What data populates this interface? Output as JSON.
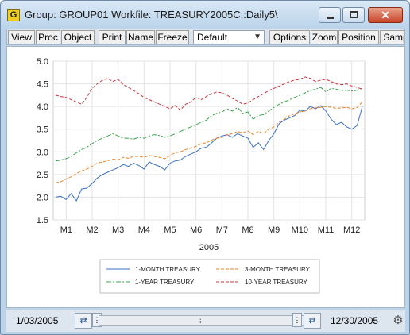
{
  "window": {
    "app_icon_letter": "G",
    "title": "Group: GROUP01   Workfile: TREASURY2005C::Daily5\\",
    "close_glyph": "✕"
  },
  "toolbar": {
    "buttons": [
      "View",
      "Proc",
      "Object",
      "Print",
      "Name",
      "Freeze",
      "Options",
      "Zoom",
      "Position",
      "Samp"
    ],
    "select_value": "Default"
  },
  "status": {
    "start_date": "1/03/2005",
    "end_date": "12/30/2005",
    "slider_grip": "⁞"
  },
  "chart_data": {
    "type": "line",
    "xlabel": "2005",
    "ylabel": "",
    "ylim": [
      1.5,
      5.0
    ],
    "yticks": [
      "1.5",
      "2.0",
      "2.5",
      "3.0",
      "3.5",
      "4.0",
      "4.5",
      "5.0"
    ],
    "x_tick_labels": [
      "M1",
      "M2",
      "M3",
      "M4",
      "M5",
      "M6",
      "M7",
      "M8",
      "M9",
      "M10",
      "M11",
      "M12"
    ],
    "grid": true,
    "legend_position": "bottom-center",
    "series": [
      {
        "name": "1-MONTH TREASURY",
        "color": "#3a6fc4",
        "dash": "solid",
        "values": [
          2.0,
          2.02,
          1.95,
          2.08,
          1.92,
          2.18,
          2.2,
          2.3,
          2.42,
          2.5,
          2.55,
          2.6,
          2.65,
          2.72,
          2.68,
          2.75,
          2.7,
          2.62,
          2.78,
          2.72,
          2.68,
          2.6,
          2.75,
          2.8,
          2.82,
          2.9,
          2.95,
          3.0,
          3.08,
          3.1,
          3.2,
          3.3,
          3.35,
          3.38,
          3.32,
          3.4,
          3.35,
          3.3,
          3.1,
          3.2,
          3.05,
          3.25,
          3.4,
          3.62,
          3.7,
          3.75,
          3.8,
          3.92,
          3.9,
          4.0,
          3.95,
          4.02,
          3.9,
          3.72,
          3.6,
          3.65,
          3.55,
          3.5,
          3.58,
          4.0
        ]
      },
      {
        "name": "3-MONTH TREASURY",
        "color": "#e8832b",
        "dash": "dashed",
        "values": [
          2.32,
          2.34,
          2.4,
          2.45,
          2.52,
          2.58,
          2.62,
          2.68,
          2.75,
          2.78,
          2.8,
          2.84,
          2.82,
          2.88,
          2.86,
          2.9,
          2.9,
          2.88,
          2.92,
          2.9,
          2.88,
          2.85,
          2.92,
          2.98,
          3.0,
          3.05,
          3.08,
          3.12,
          3.18,
          3.2,
          3.26,
          3.3,
          3.32,
          3.38,
          3.4,
          3.45,
          3.42,
          3.46,
          3.38,
          3.45,
          3.4,
          3.5,
          3.55,
          3.65,
          3.72,
          3.8,
          3.84,
          3.88,
          3.9,
          3.95,
          3.97,
          3.98,
          4.0,
          3.98,
          3.96,
          3.97,
          3.98,
          3.95,
          3.98,
          4.1
        ]
      },
      {
        "name": "1-YEAR TREASURY",
        "color": "#3fa34d",
        "dash": "dashdot",
        "values": [
          2.8,
          2.82,
          2.85,
          2.9,
          2.98,
          3.05,
          3.1,
          3.18,
          3.25,
          3.3,
          3.35,
          3.4,
          3.35,
          3.3,
          3.3,
          3.28,
          3.32,
          3.3,
          3.35,
          3.38,
          3.36,
          3.32,
          3.35,
          3.4,
          3.45,
          3.5,
          3.55,
          3.6,
          3.65,
          3.7,
          3.8,
          3.85,
          3.88,
          3.95,
          3.9,
          3.98,
          3.85,
          3.88,
          3.72,
          3.8,
          3.82,
          3.9,
          3.98,
          4.05,
          4.1,
          4.15,
          4.2,
          4.25,
          4.3,
          4.35,
          4.38,
          4.42,
          4.32,
          4.4,
          4.38,
          4.35,
          4.36,
          4.34,
          4.36,
          4.4
        ]
      },
      {
        "name": "10-YEAR TREASURY",
        "color": "#c8343b",
        "dash": "dashed",
        "values": [
          4.25,
          4.22,
          4.2,
          4.15,
          4.1,
          4.05,
          4.2,
          4.4,
          4.5,
          4.58,
          4.62,
          4.55,
          4.6,
          4.48,
          4.42,
          4.35,
          4.28,
          4.2,
          4.15,
          4.1,
          4.05,
          4.0,
          3.95,
          4.02,
          3.92,
          4.05,
          4.1,
          4.2,
          4.15,
          4.22,
          4.28,
          4.32,
          4.3,
          4.25,
          4.18,
          4.12,
          4.05,
          4.08,
          4.15,
          4.22,
          4.28,
          4.35,
          4.4,
          4.45,
          4.5,
          4.55,
          4.58,
          4.6,
          4.65,
          4.62,
          4.55,
          4.58,
          4.6,
          4.55,
          4.5,
          4.48,
          4.5,
          4.45,
          4.42,
          4.38
        ]
      }
    ]
  }
}
